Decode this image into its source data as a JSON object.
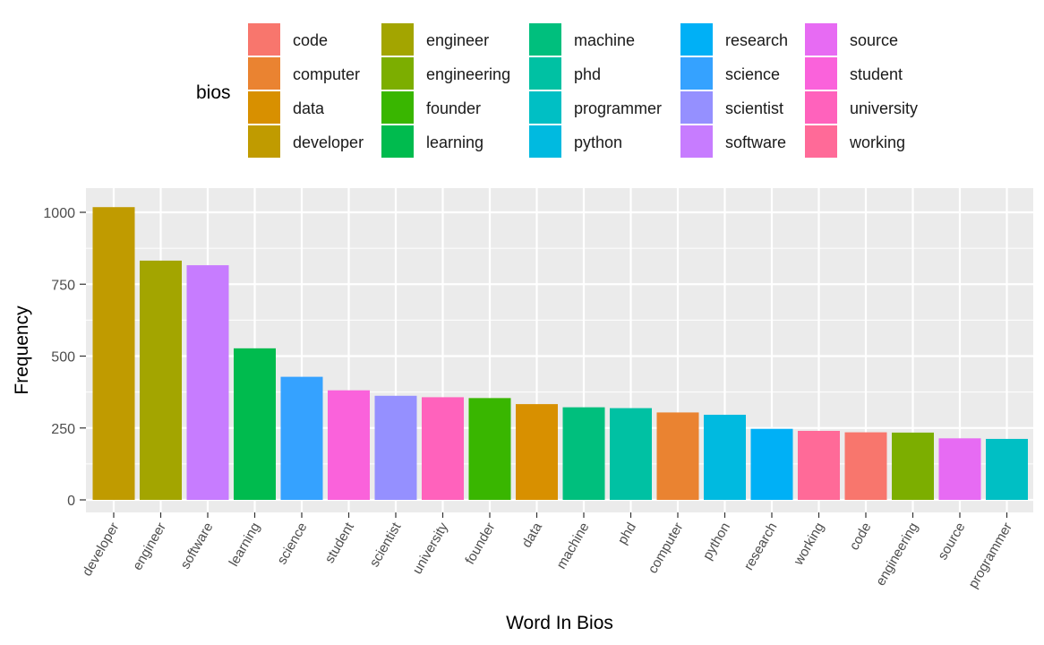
{
  "chart_data": {
    "type": "bar",
    "title": "",
    "xlabel": "Word In Bios",
    "ylabel": "Frequency",
    "ylim": [
      0,
      1080
    ],
    "yticks": [
      0,
      250,
      500,
      750,
      1000
    ],
    "grid": true,
    "legend": {
      "title": "bios",
      "position": "top",
      "ncol": 5
    },
    "categories": [
      "developer",
      "engineer",
      "software",
      "learning",
      "science",
      "student",
      "scientist",
      "university",
      "founder",
      "data",
      "machine",
      "phd",
      "computer",
      "python",
      "research",
      "working",
      "code",
      "engineering",
      "source",
      "programmer"
    ],
    "values": [
      1018,
      832,
      816,
      527,
      428,
      381,
      362,
      357,
      354,
      333,
      322,
      319,
      304,
      296,
      247,
      240,
      235,
      234,
      214,
      212
    ],
    "legend_entries": [
      {
        "label": "code",
        "color": "#F8766D"
      },
      {
        "label": "computer",
        "color": "#EA8331"
      },
      {
        "label": "data",
        "color": "#D89000"
      },
      {
        "label": "developer",
        "color": "#C09B00"
      },
      {
        "label": "engineer",
        "color": "#A3A500"
      },
      {
        "label": "engineering",
        "color": "#7CAE00"
      },
      {
        "label": "founder",
        "color": "#39B600"
      },
      {
        "label": "learning",
        "color": "#00BB4E"
      },
      {
        "label": "machine",
        "color": "#00BF7D"
      },
      {
        "label": "phd",
        "color": "#00C1A3"
      },
      {
        "label": "programmer",
        "color": "#00BFC4"
      },
      {
        "label": "python",
        "color": "#00BAE0"
      },
      {
        "label": "research",
        "color": "#00B0F6"
      },
      {
        "label": "science",
        "color": "#35A2FF"
      },
      {
        "label": "scientist",
        "color": "#9590FF"
      },
      {
        "label": "software",
        "color": "#C77CFF"
      },
      {
        "label": "source",
        "color": "#E76BF3"
      },
      {
        "label": "student",
        "color": "#FA62DB"
      },
      {
        "label": "university",
        "color": "#FF62BC"
      },
      {
        "label": "working",
        "color": "#FF6A98"
      }
    ],
    "colors": {
      "panel_bg": "#EBEBEB",
      "grid_major": "#FFFFFF",
      "tick_text": "#4D4D4D"
    }
  }
}
